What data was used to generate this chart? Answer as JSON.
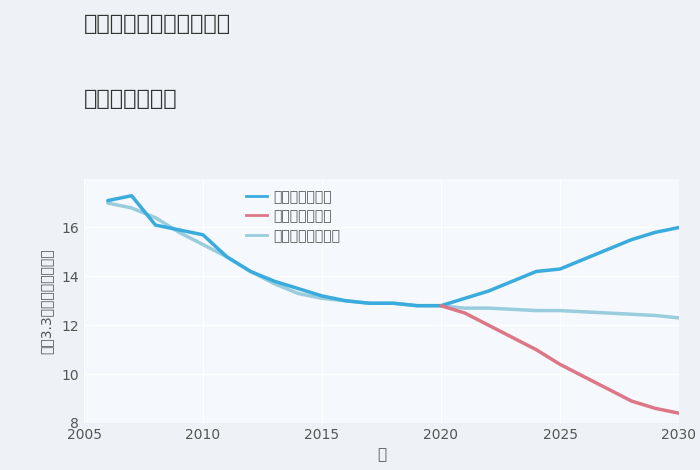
{
  "title_line1": "三重県津市一志町日置の",
  "title_line2": "土地の価格推移",
  "xlabel": "年",
  "ylabel": "坪（3.3㎡）単価（万円）",
  "background_color": "#eef2f6",
  "plot_bg_color": "#f5f8fc",
  "good_label": "グッドシナリオ",
  "bad_label": "バッドシナリオ",
  "normal_label": "ノーマルシナリオ",
  "good_color": "#3aabdd",
  "bad_color": "#dd7788",
  "normal_color": "#99ccdd",
  "good_x": [
    2006,
    2007,
    2008,
    2009,
    2010,
    2011,
    2012,
    2013,
    2014,
    2015,
    2016,
    2017,
    2018,
    2019,
    2020,
    2021,
    2022,
    2023,
    2024,
    2025,
    2026,
    2027,
    2028,
    2029,
    2030
  ],
  "good_y": [
    17.1,
    17.3,
    16.1,
    15.9,
    15.7,
    14.8,
    14.2,
    13.8,
    13.5,
    13.2,
    13.0,
    12.9,
    12.9,
    12.8,
    12.8,
    13.1,
    13.4,
    13.8,
    14.2,
    14.3,
    14.7,
    15.1,
    15.5,
    15.8,
    16.0
  ],
  "bad_x": [
    2020,
    2021,
    2022,
    2023,
    2024,
    2025,
    2026,
    2027,
    2028,
    2029,
    2030
  ],
  "bad_y": [
    12.8,
    12.5,
    12.0,
    11.5,
    11.0,
    10.4,
    9.9,
    9.4,
    8.9,
    8.6,
    8.4
  ],
  "normal_x": [
    2006,
    2007,
    2008,
    2009,
    2010,
    2011,
    2012,
    2013,
    2014,
    2015,
    2016,
    2017,
    2018,
    2019,
    2020,
    2021,
    2022,
    2023,
    2024,
    2025,
    2026,
    2027,
    2028,
    2029,
    2030
  ],
  "normal_y": [
    17.0,
    16.8,
    16.4,
    15.8,
    15.3,
    14.8,
    14.2,
    13.7,
    13.3,
    13.1,
    13.0,
    12.9,
    12.9,
    12.8,
    12.8,
    12.7,
    12.7,
    12.65,
    12.6,
    12.6,
    12.55,
    12.5,
    12.45,
    12.4,
    12.3
  ],
  "xlim": [
    2005,
    2030
  ],
  "ylim": [
    8,
    18
  ],
  "xticks": [
    2005,
    2010,
    2015,
    2020,
    2025,
    2030
  ],
  "yticks": [
    8,
    10,
    12,
    14,
    16
  ],
  "linewidth": 2.5
}
